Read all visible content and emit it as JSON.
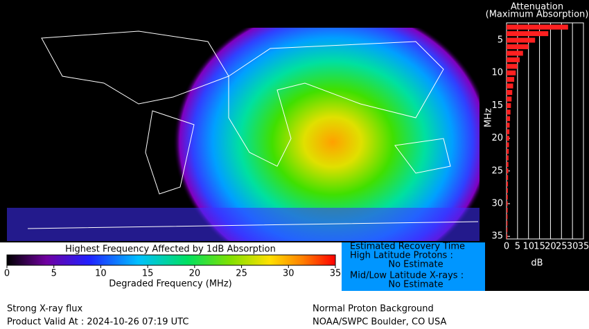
{
  "chart_data": {
    "type": "bar",
    "orientation": "horizontal",
    "title": "Attenuation",
    "subtitle": "(Maximum Absorption)",
    "x_label": "MHz",
    "y_label": "dB",
    "x": [
      3,
      4,
      5,
      6,
      7,
      8,
      9,
      10,
      11,
      12,
      13,
      14,
      15,
      16,
      17,
      18,
      19,
      20,
      21,
      22,
      23,
      24,
      25,
      26,
      27,
      28,
      29,
      30,
      31,
      32,
      33,
      34,
      35
    ],
    "values": [
      28,
      19,
      13,
      10,
      7.5,
      6,
      5,
      4.2,
      3.5,
      3,
      2.6,
      2.3,
      2,
      1.8,
      1.6,
      1.4,
      1.3,
      1.2,
      1.1,
      1,
      0.9,
      0.85,
      0.8,
      0.7,
      0.65,
      0.6,
      0.55,
      0.5,
      0.5,
      0.45,
      0.42,
      0.4,
      0.38
    ],
    "color": "#ff2020",
    "xlim": [
      2.35,
      35.4
    ],
    "xticks": [
      5,
      10,
      15,
      20,
      25,
      30,
      35
    ],
    "ylim": [
      0,
      35
    ],
    "yticks": [
      0,
      5,
      10,
      15,
      20,
      25,
      30,
      35
    ],
    "grid": true
  },
  "colorbar": {
    "title": "Highest Frequency Affected by 1dB Absorption",
    "label": "Degraded Frequency (MHz)",
    "lim": [
      0,
      35
    ],
    "ticks": [
      0,
      5,
      10,
      15,
      20,
      25,
      30,
      35
    ]
  },
  "recovery": {
    "title": "Estimated Recovery Time",
    "high_label": "High Latitude Protons :",
    "high_value": "No Estimate",
    "low_label": "Mid/Low Latitude X-rays :",
    "low_value": "No Estimate"
  },
  "footer": {
    "left_1": "Strong X-ray flux",
    "left_2": "Product Valid At : 2024-10-26 07:19 UTC",
    "right_1": "Normal Proton Background",
    "right_2": "NOAA/SWPC Boulder, CO USA"
  }
}
